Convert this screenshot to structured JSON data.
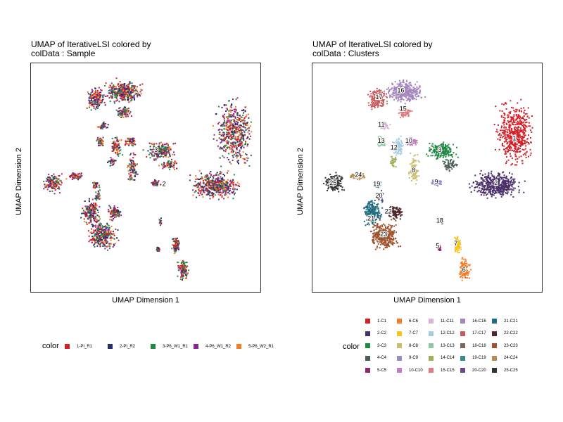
{
  "chart_data": [
    {
      "type": "scatter",
      "title": [
        "UMAP of IterativeLSI  colored by",
        "colData :  Sample"
      ],
      "xlabel": "UMAP Dimension 1",
      "ylabel": "UMAP Dimension 2",
      "grid": false,
      "axis_ticks": false,
      "legend_title": "color",
      "legend_position": "bottom",
      "series": [
        {
          "name": "1-PI_R1",
          "color": "#D51F26"
        },
        {
          "name": "2-PI_R2",
          "color": "#272E6A"
        },
        {
          "name": "3-P6_W1_R1",
          "color": "#208A42"
        },
        {
          "name": "4-P6_W1_R2",
          "color": "#89288F"
        },
        {
          "name": "5-P6_W2_R1",
          "color": "#F47D2B"
        }
      ],
      "cluster_text": [
        {
          "label": "3",
          "x": 0.545,
          "y": 0.62
        },
        {
          "label": "2",
          "x": 0.58,
          "y": 0.47
        }
      ]
    },
    {
      "type": "scatter",
      "title": [
        "UMAP of IterativeLSI  colored by",
        "colData :  Clusters"
      ],
      "xlabel": "UMAP Dimension 1",
      "ylabel": "UMAP Dimension 2",
      "grid": false,
      "axis_ticks": false,
      "legend_title": "color",
      "legend_position": "bottom",
      "series": [
        {
          "name": "1-C1",
          "color": "#D51F26"
        },
        {
          "name": "2-C2",
          "color": "#4A2E6A"
        },
        {
          "name": "3-C3",
          "color": "#208A42"
        },
        {
          "name": "4-C4",
          "color": "#4B5E54"
        },
        {
          "name": "5-C5",
          "color": "#8A2B6E"
        },
        {
          "name": "6-C6",
          "color": "#F37D2A"
        },
        {
          "name": "7-C7",
          "color": "#F6C41D"
        },
        {
          "name": "8-C8",
          "color": "#C9BE6F"
        },
        {
          "name": "9-C9",
          "color": "#9A8BC6"
        },
        {
          "name": "10-C10",
          "color": "#C080C0"
        },
        {
          "name": "11-C11",
          "color": "#D9B2D8"
        },
        {
          "name": "12-C12",
          "color": "#A8CCE0"
        },
        {
          "name": "13-C13",
          "color": "#8CC8A6"
        },
        {
          "name": "14-C14",
          "color": "#A0AE5C"
        },
        {
          "name": "15-C15",
          "color": "#E07C80"
        },
        {
          "name": "16-C16",
          "color": "#A585BE"
        },
        {
          "name": "17-C17",
          "color": "#C85A5A"
        },
        {
          "name": "18-C18",
          "color": "#7B6A5A"
        },
        {
          "name": "19-C19",
          "color": "#3A8A8A"
        },
        {
          "name": "20-C20",
          "color": "#6A4A8A"
        },
        {
          "name": "21-C21",
          "color": "#1F6A7E"
        },
        {
          "name": "22-C22",
          "color": "#4A2A2A"
        },
        {
          "name": "23-C23",
          "color": "#A0522D"
        },
        {
          "name": "24-C24",
          "color": "#B78B4F"
        },
        {
          "name": "25-C25",
          "color": "#333333"
        }
      ],
      "cluster_text": [
        {
          "label": "16",
          "x": 0.385,
          "y": 0.88
        },
        {
          "label": "17",
          "x": 0.29,
          "y": 0.85
        },
        {
          "label": "15",
          "x": 0.395,
          "y": 0.8
        },
        {
          "label": "1",
          "x": 0.88,
          "y": 0.67
        },
        {
          "label": "11",
          "x": 0.3,
          "y": 0.73
        },
        {
          "label": "10",
          "x": 0.42,
          "y": 0.66
        },
        {
          "label": "13",
          "x": 0.3,
          "y": 0.66
        },
        {
          "label": "12",
          "x": 0.355,
          "y": 0.63
        },
        {
          "label": "3",
          "x": 0.555,
          "y": 0.62
        },
        {
          "label": "8",
          "x": 0.44,
          "y": 0.53
        },
        {
          "label": "24",
          "x": 0.2,
          "y": 0.51
        },
        {
          "label": "25",
          "x": 0.09,
          "y": 0.475
        },
        {
          "label": "19",
          "x": 0.28,
          "y": 0.47
        },
        {
          "label": "9",
          "x": 0.54,
          "y": 0.48
        },
        {
          "label": "2",
          "x": 0.8,
          "y": 0.475
        },
        {
          "label": "20",
          "x": 0.29,
          "y": 0.42
        },
        {
          "label": "22",
          "x": 0.33,
          "y": 0.35
        },
        {
          "label": "21",
          "x": 0.255,
          "y": 0.32
        },
        {
          "label": "23",
          "x": 0.31,
          "y": 0.25
        },
        {
          "label": "18",
          "x": 0.555,
          "y": 0.31
        },
        {
          "label": "7",
          "x": 0.625,
          "y": 0.21
        },
        {
          "label": "5",
          "x": 0.545,
          "y": 0.2
        },
        {
          "label": "6",
          "x": 0.66,
          "y": 0.095
        }
      ]
    }
  ]
}
